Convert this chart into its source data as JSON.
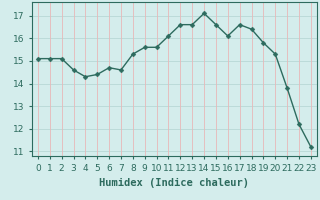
{
  "x": [
    0,
    1,
    2,
    3,
    4,
    5,
    6,
    7,
    8,
    9,
    10,
    11,
    12,
    13,
    14,
    15,
    16,
    17,
    18,
    19,
    20,
    21,
    22,
    23
  ],
  "y": [
    15.1,
    15.1,
    15.1,
    14.6,
    14.3,
    14.4,
    14.7,
    14.6,
    15.3,
    15.6,
    15.6,
    16.1,
    16.6,
    16.6,
    17.1,
    16.6,
    16.1,
    16.6,
    16.4,
    15.8,
    15.3,
    13.8,
    12.2,
    11.2
  ],
  "line_color": "#2d6b5e",
  "marker": "D",
  "marker_size": 2.5,
  "bg_color": "#d4edec",
  "grid_color_h": "#b8d8d6",
  "grid_color_v": "#e8b8b8",
  "xlabel": "Humidex (Indice chaleur)",
  "xlabel_fontsize": 7.5,
  "xlim": [
    -0.5,
    23.5
  ],
  "ylim": [
    10.8,
    17.6
  ],
  "yticks": [
    11,
    12,
    13,
    14,
    15,
    16,
    17
  ],
  "xticks": [
    0,
    1,
    2,
    3,
    4,
    5,
    6,
    7,
    8,
    9,
    10,
    11,
    12,
    13,
    14,
    15,
    16,
    17,
    18,
    19,
    20,
    21,
    22,
    23
  ],
  "tick_fontsize": 6.5,
  "linewidth": 1.0
}
